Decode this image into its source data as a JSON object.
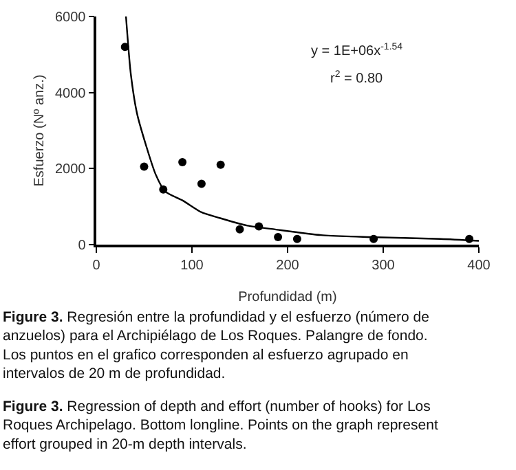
{
  "chart_data": {
    "type": "scatter",
    "xlabel": "Profundidad (m)",
    "ylabel": "Esfuerzo (Nº anz.)",
    "xlim": [
      0,
      400
    ],
    "xticks": [
      0,
      100,
      200,
      300,
      400
    ],
    "ylim": [
      0,
      6000
    ],
    "yticks": [
      0,
      2000,
      4000,
      6000
    ],
    "marker": "circle",
    "series": [
      {
        "color": "#000000",
        "x": [
          30,
          50,
          70,
          90,
          110,
          130,
          150,
          170,
          190,
          210,
          290,
          390
        ],
        "values": [
          5200,
          2050,
          1450,
          2170,
          1600,
          2100,
          400,
          480,
          200,
          150,
          150,
          150
        ]
      },
      {
        "type": "line",
        "color": "#000000",
        "marker": "none",
        "line_style": "solid",
        "x": [
          31,
          36,
          43,
          62,
          72,
          91,
          110,
          129,
          158,
          187,
          235,
          283,
          360,
          400
        ],
        "values": [
          6000,
          4500,
          3400,
          1850,
          1400,
          1150,
          850,
          700,
          500,
          400,
          250,
          200,
          150,
          100
        ]
      }
    ],
    "annotations": [
      "y = 1E+06x$^{-1.54}$",
      "r$^{2}$ = 0.80",
      "Figure 3. Regresión entre la profundidad y el esfuerzo (número de anzuelos) para el Archipiélago de Los Roques. Palangre de fondo. Los puntos en el grafico corresponden al esfuerzo agrupado en intervalos de 20 m de profundidad.",
      "Figure 3. Regression of depth and effort (number of hooks) for Los Roques Archipelago. Bottom longline. Points on the graph represent effort grouped in 20-m depth intervals."
    ]
  }
}
